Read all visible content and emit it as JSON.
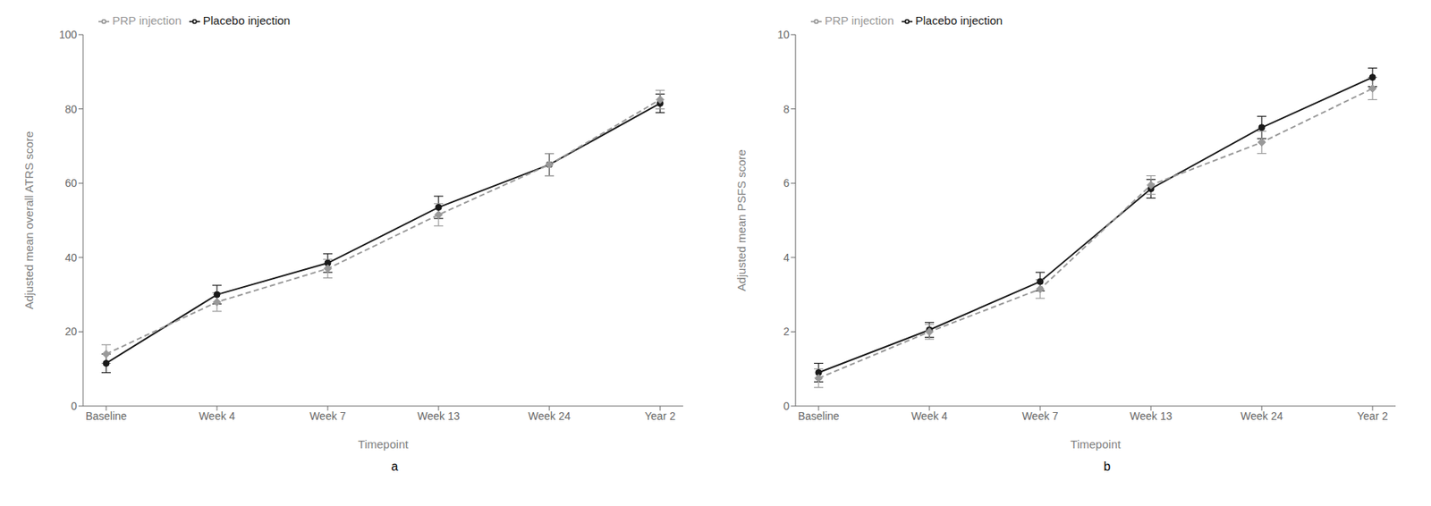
{
  "chart_data": [
    {
      "type": "line",
      "x_label": "Timepoint",
      "y_label": "Adjusted mean overall ATRS score",
      "annotations": [
        "a"
      ],
      "categories": [
        "Baseline",
        "Week 4",
        "Week 7",
        "Week 13",
        "Week 24",
        "Year 2"
      ],
      "series": [
        {
          "name": "Placebo injection",
          "color": "#1a1a1a",
          "marker": "circle",
          "line_style": "solid",
          "values": [
            11.5,
            30.0,
            38.5,
            53.5,
            65.0,
            81.5
          ],
          "error": [
            2.5,
            2.5,
            2.5,
            3.0,
            3.0,
            2.5
          ]
        },
        {
          "name": "PRP injection",
          "color": "#999999",
          "marker": "diamond",
          "line_style": "dashed",
          "values": [
            14.0,
            28.0,
            37.0,
            51.5,
            65.0,
            82.5
          ],
          "error": [
            2.5,
            2.5,
            2.5,
            3.0,
            3.0,
            2.5
          ]
        }
      ],
      "ylim": [
        0,
        100
      ],
      "yticks": [
        0,
        20,
        40,
        60,
        80,
        100
      ],
      "grid": false,
      "legend": "upper left"
    },
    {
      "type": "line",
      "x_label": "Timepoint",
      "y_label": "Adjusted mean PSFS score",
      "annotations": [
        "b"
      ],
      "categories": [
        "Baseline",
        "Week 4",
        "Week 7",
        "Week 13",
        "Week 24",
        "Year 2"
      ],
      "series": [
        {
          "name": "Placebo injection",
          "color": "#1a1a1a",
          "marker": "circle",
          "line_style": "solid",
          "values": [
            0.9,
            2.05,
            3.35,
            5.85,
            7.5,
            8.85
          ],
          "error": [
            0.25,
            0.2,
            0.25,
            0.25,
            0.3,
            0.25
          ]
        },
        {
          "name": "PRP injection",
          "color": "#999999",
          "marker": "diamond",
          "line_style": "dashed",
          "values": [
            0.75,
            2.0,
            3.15,
            5.95,
            7.1,
            8.55
          ],
          "error": [
            0.25,
            0.2,
            0.25,
            0.25,
            0.3,
            0.3
          ]
        }
      ],
      "ylim": [
        0,
        10
      ],
      "yticks": [
        0,
        2,
        4,
        6,
        8,
        10
      ],
      "grid": false,
      "legend": "upper left"
    }
  ]
}
